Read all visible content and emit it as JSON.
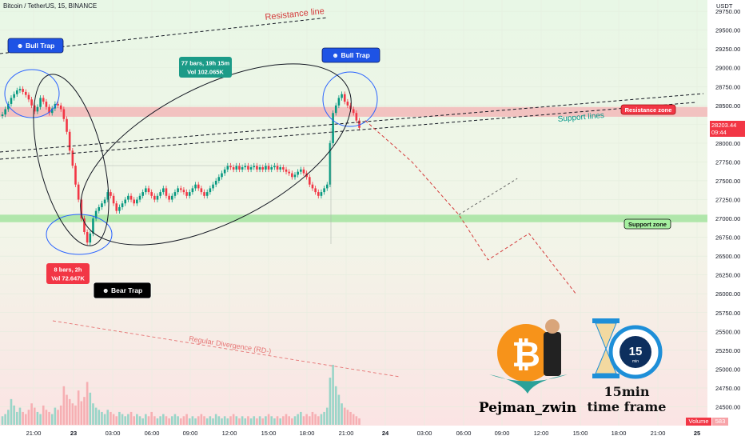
{
  "header": {
    "symbol_line": "Bitcoin / TetherUS, 15, BINANCE"
  },
  "price_axis": {
    "currency": "USDT",
    "ticks": [
      "29750.00",
      "29500.00",
      "29250.00",
      "29000.00",
      "28750.00",
      "28500.00",
      "28250.00",
      "28000.00",
      "27750.00",
      "27500.00",
      "27250.00",
      "27000.00",
      "26750.00",
      "26500.00",
      "26250.00",
      "26000.00",
      "25750.00",
      "25500.00",
      "25250.00",
      "25000.00",
      "24750.00",
      "24500.00"
    ],
    "last_price": "28203.44",
    "countdown": "09:44"
  },
  "time_axis": {
    "ticks": [
      "21:00",
      "23",
      "03:00",
      "06:00",
      "09:00",
      "12:00",
      "15:00",
      "18:00",
      "21:00",
      "24",
      "03:00",
      "06:00",
      "09:00",
      "12:00",
      "15:00",
      "18:00",
      "21:00",
      "25"
    ]
  },
  "annotations": {
    "resistance_line": "Resistance line",
    "bull_trap_left": "Bull Trap",
    "bull_trap_right": "Bull Trap",
    "bear_trap": "Bear Trap",
    "range_box": [
      "77 bars, 19h 15m",
      "Vol 102.065K"
    ],
    "drop_box": [
      "8 bars, 2h",
      "Vol 72.647K"
    ],
    "resistance_zone": "Resistance zone",
    "support_lines": "Support lines",
    "support_zone": "Support zone",
    "divergence": "Regular Divergence (RD-)"
  },
  "branding": {
    "author": "Pejman_zwin",
    "timeframe_line1": "15min",
    "timeframe_line2": "time frame",
    "clock_text": "15",
    "clock_unit": "min",
    "coin_symbol": "₿"
  },
  "volume_tag": {
    "label": "Volume",
    "value": "583"
  },
  "colors": {
    "up": "#089981",
    "down": "#f23645",
    "resistance_zone": "#f2b8b8",
    "support_zone": "#a5e3a0",
    "bg_top": "#e8f7e6",
    "bg_bottom": "#fae6e6"
  },
  "chart_data": {
    "type": "candlestick",
    "ylim": [
      24250,
      29900
    ],
    "closes": [
      28380,
      28450,
      28520,
      28600,
      28650,
      28700,
      28720,
      28680,
      28640,
      28580,
      28500,
      28420,
      28480,
      28600,
      28550,
      28480,
      28400,
      28460,
      28520,
      28500,
      28450,
      28320,
      28150,
      27900,
      27700,
      27450,
      27250,
      27000,
      26820,
      26680,
      26800,
      27000,
      27100,
      27150,
      27200,
      27250,
      27350,
      27300,
      27200,
      27100,
      27150,
      27200,
      27250,
      27300,
      27250,
      27200,
      27250,
      27300,
      27350,
      27400,
      27350,
      27300,
      27250,
      27300,
      27350,
      27400,
      27300,
      27250,
      27300,
      27350,
      27400,
      27380,
      27350,
      27300,
      27350,
      27400,
      27450,
      27400,
      27350,
      27300,
      27350,
      27400,
      27450,
      27500,
      27550,
      27600,
      27650,
      27700,
      27680,
      27650,
      27700,
      27650,
      27680,
      27700,
      27650,
      27680,
      27700,
      27650,
      27680,
      27650,
      27700,
      27650,
      27680,
      27700,
      27650,
      27680,
      27650,
      27620,
      27600,
      27550,
      27580,
      27620,
      27650,
      27600,
      27550,
      27450,
      27400,
      27350,
      27300,
      27350,
      27400,
      27450,
      28000,
      28400,
      28500,
      28600,
      28650,
      28550,
      28500,
      28450,
      28400,
      28300,
      28203
    ],
    "volumes": [
      4,
      5,
      7,
      12,
      9,
      6,
      8,
      6,
      5,
      7,
      10,
      8,
      6,
      5,
      9,
      7,
      6,
      5,
      8,
      7,
      9,
      18,
      14,
      12,
      10,
      9,
      16,
      11,
      13,
      20,
      15,
      10,
      8,
      7,
      6,
      5,
      7,
      6,
      5,
      4,
      6,
      5,
      4,
      5,
      6,
      4,
      5,
      4,
      3,
      5,
      4,
      6,
      4,
      3,
      4,
      5,
      4,
      3,
      4,
      5,
      4,
      3,
      4,
      5,
      3,
      4,
      3,
      4,
      5,
      4,
      3,
      4,
      3,
      5,
      4,
      3,
      4,
      3,
      4,
      5,
      4,
      3,
      4,
      3,
      4,
      3,
      4,
      3,
      4,
      3,
      4,
      5,
      4,
      3,
      4,
      3,
      4,
      5,
      4,
      3,
      4,
      5,
      6,
      4,
      5,
      4,
      6,
      5,
      4,
      5,
      6,
      8,
      22,
      28,
      18,
      14,
      10,
      8,
      7,
      6,
      5,
      4,
      3
    ],
    "resistance_zone": [
      28350,
      28480
    ],
    "support_zone": [
      26950,
      27050
    ],
    "projection": [
      [
        124,
        28300
      ],
      [
        140,
        27750
      ],
      [
        156,
        27050
      ],
      [
        166,
        26450
      ],
      [
        180,
        26800
      ],
      [
        196,
        26000
      ]
    ],
    "alt_projection": [
      [
        156,
        27050
      ],
      [
        176,
        27530
      ]
    ]
  }
}
